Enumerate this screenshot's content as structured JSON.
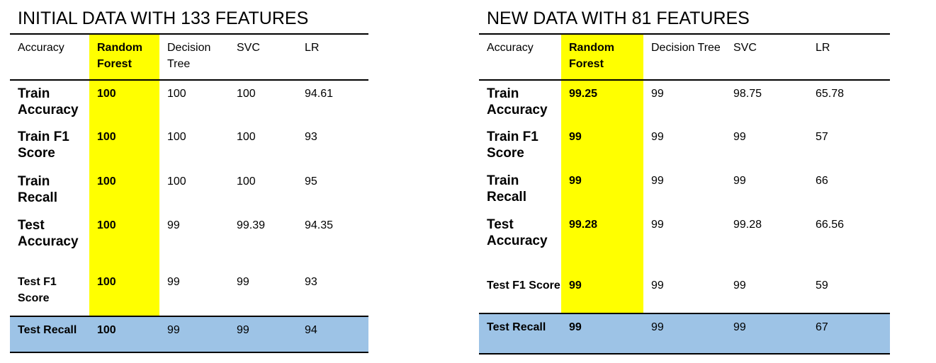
{
  "left": {
    "title": "INITIAL DATA WITH 133 FEATURES",
    "headers": [
      "Accuracy",
      "Random Forest",
      "Decision Tree",
      "SVC",
      "LR"
    ],
    "rows": [
      {
        "label": "Train Accuracy",
        "rf": "100",
        "dt": "100",
        "svc": "100",
        "lr": "94.61"
      },
      {
        "label": "Train F1 Score",
        "rf": "100",
        "dt": "100",
        "svc": "100",
        "lr": "93"
      },
      {
        "label": "Train Recall",
        "rf": "100",
        "dt": "100",
        "svc": "100",
        "lr": "95"
      },
      {
        "label": "Test Accuracy",
        "rf": "100",
        "dt": "99",
        "svc": "99.39",
        "lr": "94.35"
      },
      {
        "label": "Test F1 Score",
        "rf": "100",
        "dt": "99",
        "svc": "99",
        "lr": "93"
      },
      {
        "label": "Test Recall",
        "rf": "100",
        "dt": "99",
        "svc": "99",
        "lr": "94"
      }
    ]
  },
  "right": {
    "title": "NEW DATA WITH 81 FEATURES",
    "headers": [
      "Accuracy",
      "Random Forest",
      "Decision Tree",
      "SVC",
      "LR"
    ],
    "rows": [
      {
        "label": "Train Accuracy",
        "rf": "99.25",
        "dt": "99",
        "svc": "98.75",
        "lr": "65.78"
      },
      {
        "label": "Train F1 Score",
        "rf": "99",
        "dt": "99",
        "svc": "99",
        "lr": "57"
      },
      {
        "label": "Train Recall",
        "rf": "99",
        "dt": "99",
        "svc": "99",
        "lr": "66"
      },
      {
        "label": "Test Accuracy",
        "rf": "99.28",
        "dt": "99",
        "svc": "99.28",
        "lr": "66.56"
      },
      {
        "label": "Test F1 Score",
        "rf": "99",
        "dt": "99",
        "svc": "99",
        "lr": "59"
      },
      {
        "label": "Test Recall",
        "rf": "99",
        "dt": "99",
        "svc": "99",
        "lr": "67"
      }
    ]
  },
  "colors": {
    "highlight": "#ffff00",
    "recall_row": "#9dc3e6"
  }
}
